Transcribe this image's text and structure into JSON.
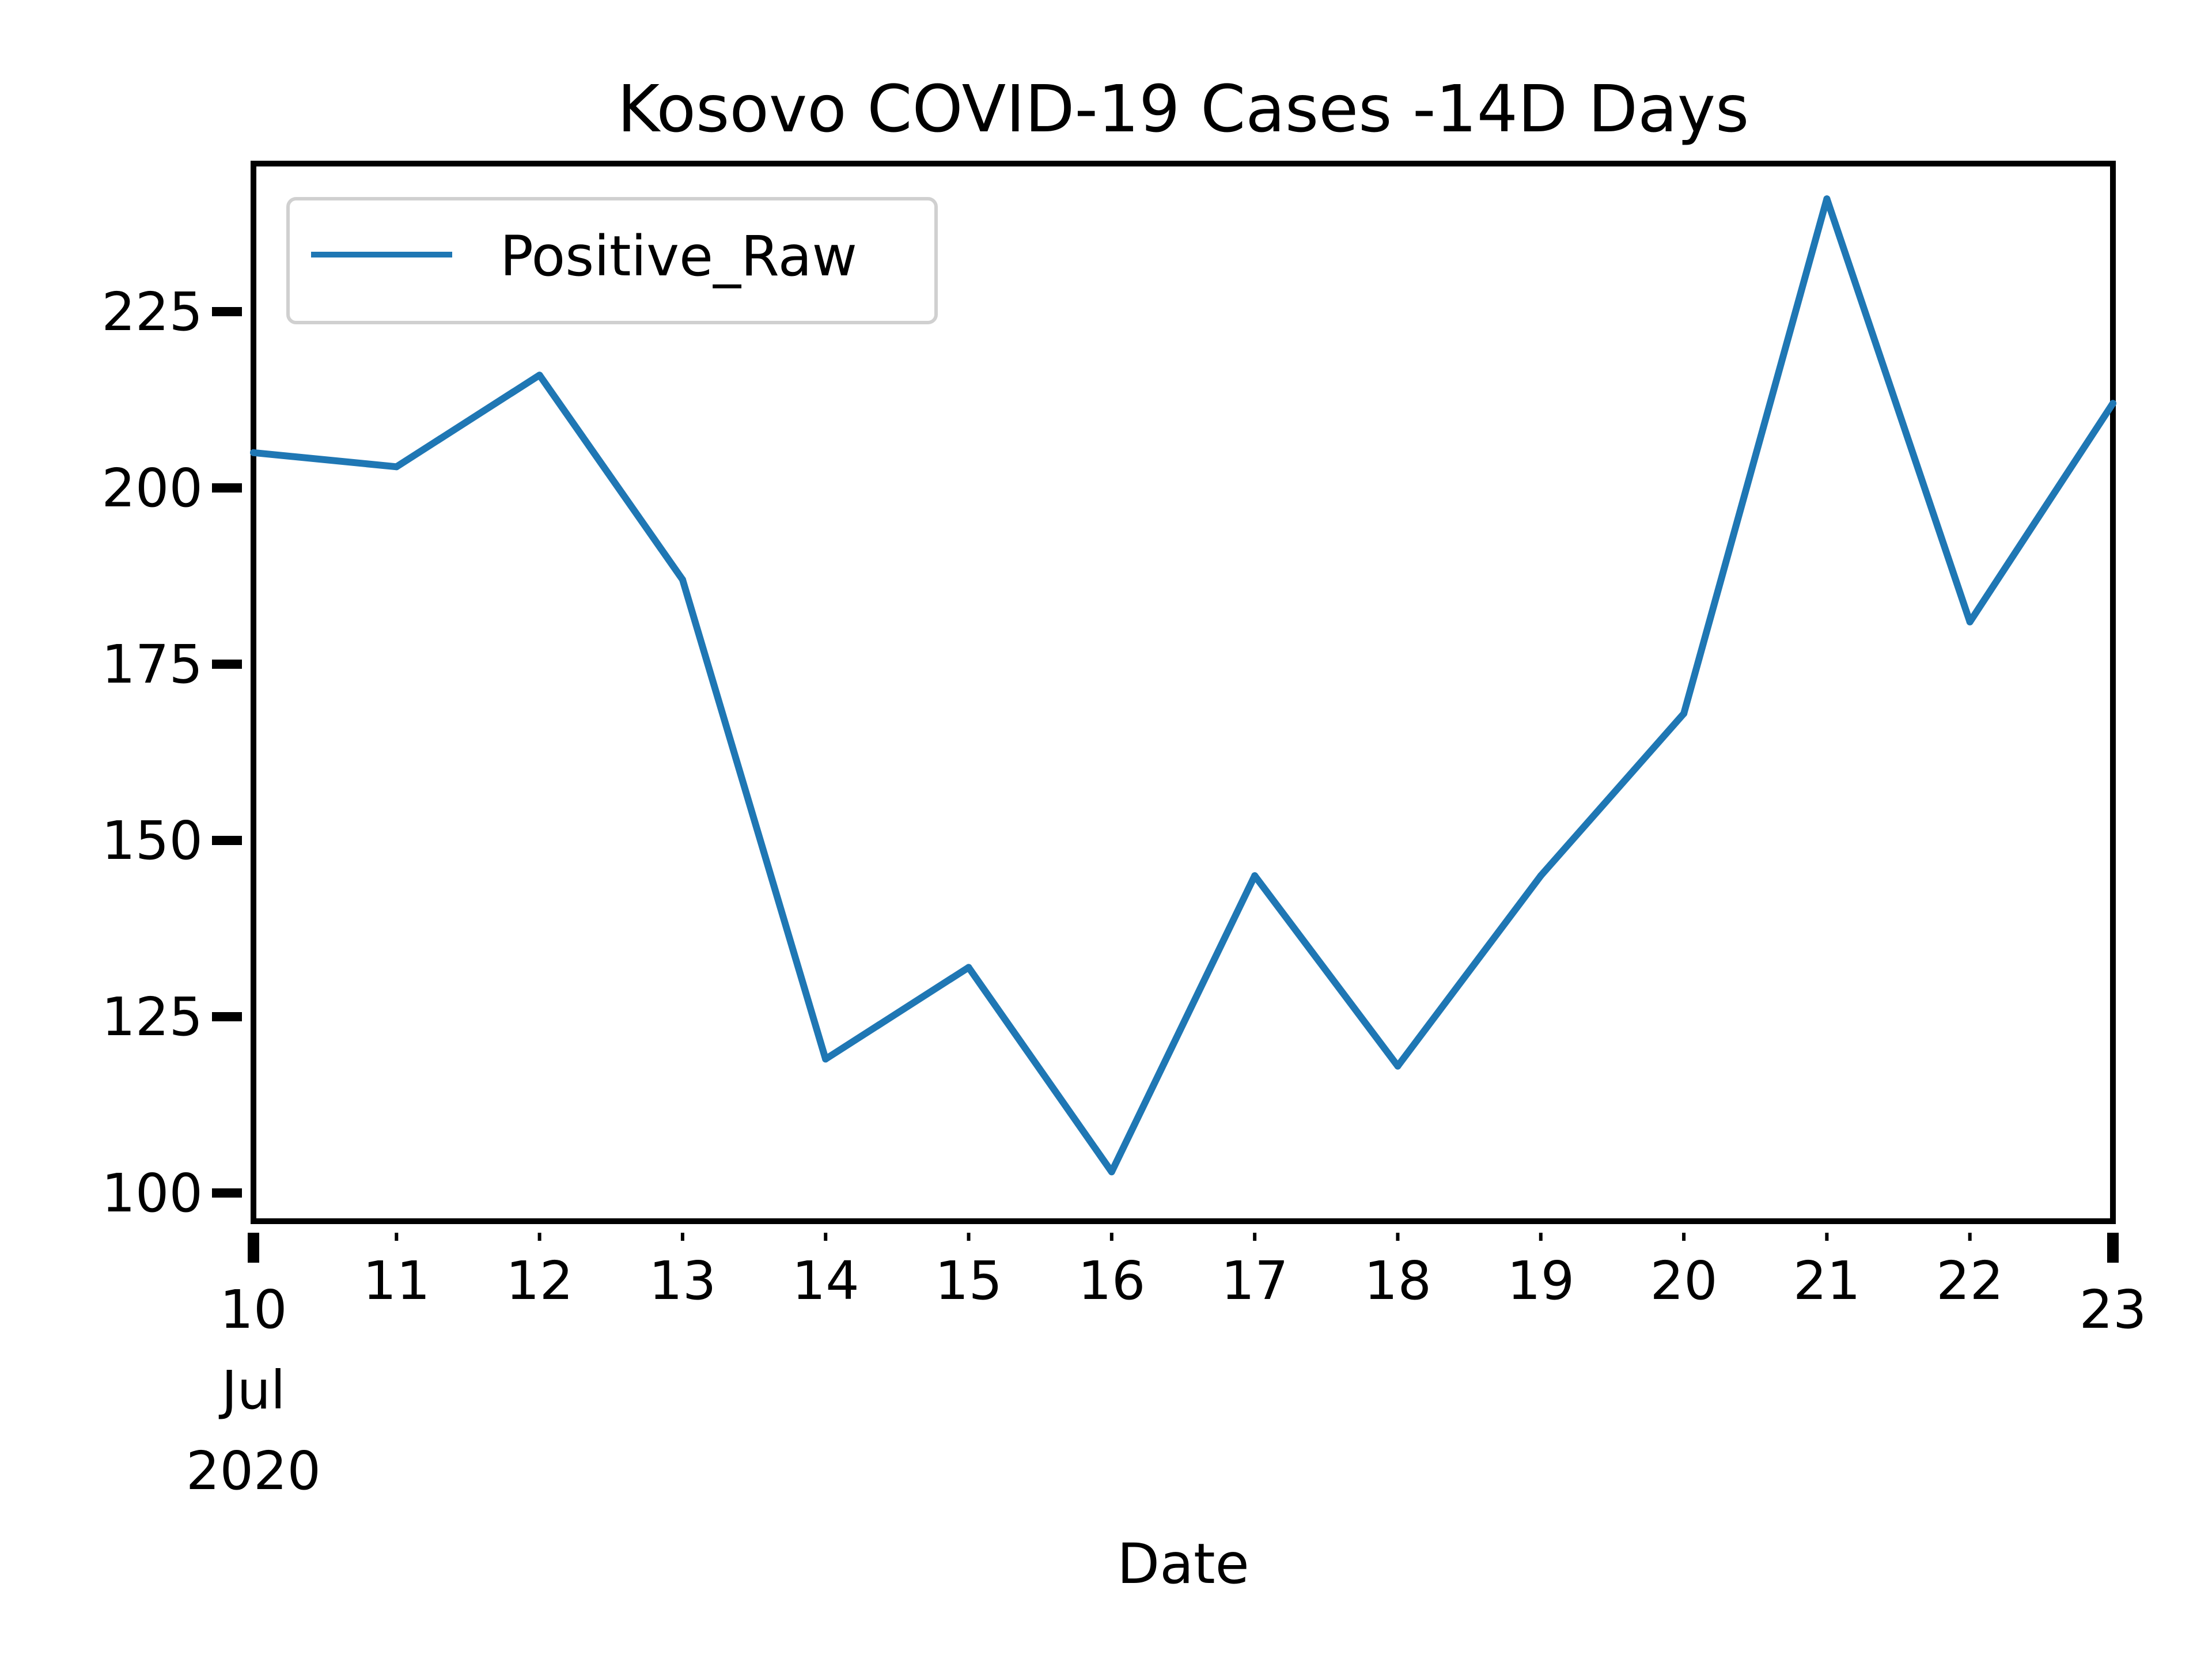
{
  "chart_data": {
    "type": "line",
    "title": "Kosovo COVID-19 Cases -14D Days",
    "xlabel": "Date",
    "ylabel": "",
    "xlim": [
      "2020-07-10",
      "2020-07-23"
    ],
    "ylim": [
      96,
      246
    ],
    "yticks": [
      100,
      125,
      150,
      175,
      200,
      225
    ],
    "xtick_labels": [
      {
        "date": "2020-07-10",
        "lines": [
          "10",
          "Jul",
          "2020"
        ]
      },
      {
        "date": "2020-07-11",
        "lines": [
          "11"
        ]
      },
      {
        "date": "2020-07-12",
        "lines": [
          "12"
        ]
      },
      {
        "date": "2020-07-13",
        "lines": [
          "13"
        ]
      },
      {
        "date": "2020-07-14",
        "lines": [
          "14"
        ]
      },
      {
        "date": "2020-07-15",
        "lines": [
          "15"
        ]
      },
      {
        "date": "2020-07-16",
        "lines": [
          "16"
        ]
      },
      {
        "date": "2020-07-17",
        "lines": [
          "17"
        ]
      },
      {
        "date": "2020-07-18",
        "lines": [
          "18"
        ]
      },
      {
        "date": "2020-07-19",
        "lines": [
          "19"
        ]
      },
      {
        "date": "2020-07-20",
        "lines": [
          "20"
        ]
      },
      {
        "date": "2020-07-21",
        "lines": [
          "21"
        ]
      },
      {
        "date": "2020-07-22",
        "lines": [
          "22"
        ]
      },
      {
        "date": "2020-07-23",
        "lines": [
          "23"
        ]
      }
    ],
    "legend": {
      "position": "upper-left"
    },
    "grid": false,
    "series": [
      {
        "name": "Positive_Raw",
        "color": "#1f77b4",
        "x": [
          "2020-07-10",
          "2020-07-11",
          "2020-07-12",
          "2020-07-13",
          "2020-07-14",
          "2020-07-15",
          "2020-07-16",
          "2020-07-17",
          "2020-07-18",
          "2020-07-19",
          "2020-07-20",
          "2020-07-21",
          "2020-07-22",
          "2020-07-23"
        ],
        "values": [
          205,
          203,
          216,
          187,
          119,
          132,
          103,
          145,
          118,
          145,
          168,
          241,
          181,
          212
        ]
      }
    ]
  }
}
